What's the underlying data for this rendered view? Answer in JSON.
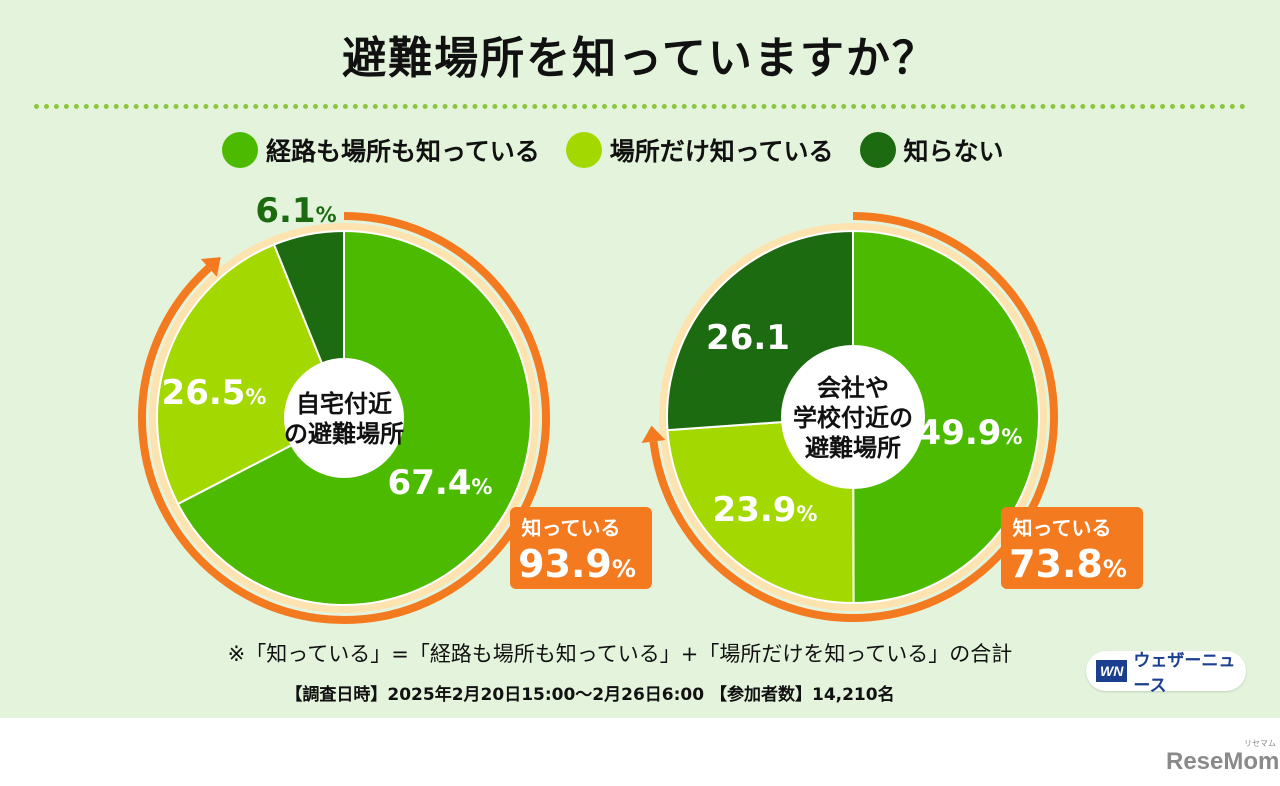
{
  "title": "避難場所を知っていますか？",
  "legend": [
    {
      "label": "経路も場所も知っている",
      "color": "#4cbb00"
    },
    {
      "label": "場所だけ知っている",
      "color": "#a3d900"
    },
    {
      "label": "知らない",
      "color": "#1c6b10"
    }
  ],
  "chart_data": [
    {
      "type": "pie",
      "title": "自宅付近の避難場所",
      "categories": [
        "経路も場所も知っている",
        "場所だけ知っている",
        "知らない"
      ],
      "values": [
        67.4,
        26.5,
        6.1
      ],
      "value_labels": [
        "67.4",
        "26.5",
        "6.1"
      ],
      "unit": "%",
      "center_lines": [
        "自宅付近",
        "の避難場所"
      ],
      "callout": {
        "label": "知っている",
        "value": "93.9",
        "unit": "%"
      }
    },
    {
      "type": "pie",
      "title": "会社や学校付近の避難場所",
      "categories": [
        "経路も場所も知っている",
        "場所だけ知っている",
        "知らない"
      ],
      "values": [
        49.9,
        23.9,
        26.1
      ],
      "value_labels": [
        "49.9",
        "23.9",
        "26.1"
      ],
      "unit": "%",
      "center_lines": [
        "会社や",
        "学校付近の",
        "避難場所"
      ],
      "callout": {
        "label": "知っている",
        "value": "73.8",
        "unit": "%"
      }
    }
  ],
  "note": "※「知っている」=「経路も場所も知っている」+「場所だけを知っている」の合計",
  "survey": "【調査日時】2025年2月20日15:00～2月26日6:00 【参加者数】14,210名",
  "brand": {
    "mark": "WN",
    "name": "ウェザーニュース"
  },
  "watermark": {
    "main": "ReseMom",
    "sub": "リセマム"
  },
  "colors": {
    "background": "#e4f4dc",
    "arrow": "#f47a1f",
    "ring": "#fde3b0",
    "text_dark": "#111111",
    "label_dark": "#1c6b10"
  }
}
